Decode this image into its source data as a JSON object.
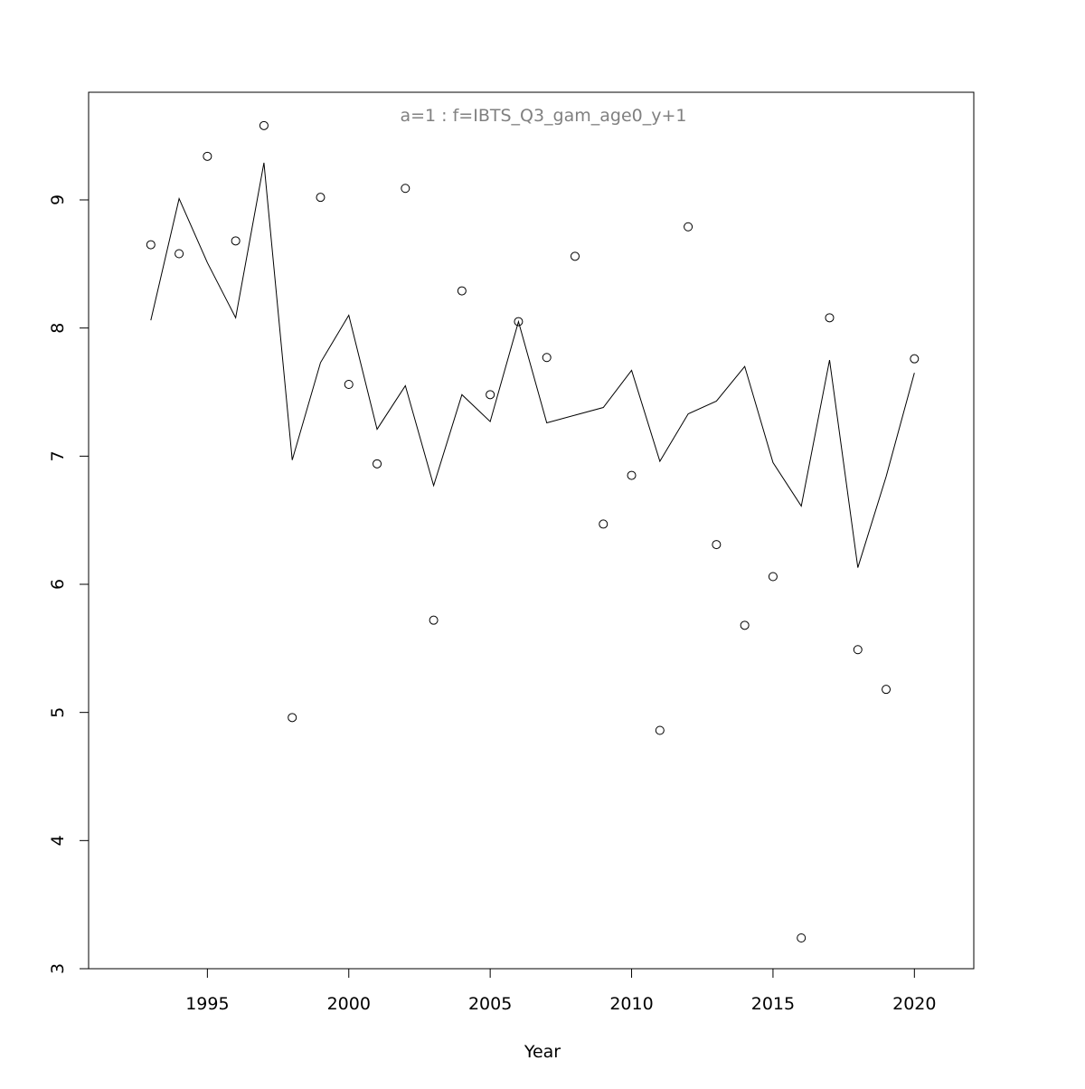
{
  "chart_data": {
    "type": "scatter-line",
    "title": "a=1  :  f=IBTS_Q3_gam_age0_y+1",
    "x_label": "Year",
    "x": [
      1993,
      1994,
      1995,
      1996,
      1997,
      1998,
      1999,
      2000,
      2001,
      2002,
      2003,
      2004,
      2005,
      2006,
      2007,
      2008,
      2009,
      2010,
      2011,
      2012,
      2013,
      2014,
      2015,
      2016,
      2017,
      2018,
      2019,
      2020
    ],
    "series": [
      {
        "style": "points",
        "color": "#000000",
        "values": [
          8.65,
          8.58,
          9.34,
          8.68,
          9.58,
          4.96,
          9.02,
          7.56,
          6.94,
          9.09,
          5.72,
          8.29,
          7.48,
          8.05,
          7.77,
          8.56,
          6.47,
          6.85,
          4.86,
          8.79,
          6.31,
          5.68,
          6.06,
          3.24,
          8.08,
          5.49,
          5.18,
          7.76
        ]
      },
      {
        "style": "line",
        "color": "#000000",
        "values": [
          8.06,
          9.01,
          8.51,
          8.08,
          9.29,
          6.97,
          7.73,
          8.1,
          7.21,
          7.55,
          6.77,
          7.48,
          7.27,
          8.05,
          7.26,
          7.32,
          7.38,
          7.67,
          6.96,
          7.33,
          7.43,
          7.7,
          6.95,
          6.61,
          7.75,
          6.13,
          6.84,
          7.65
        ]
      }
    ],
    "xlim": [
      1990.8,
      2022.1
    ],
    "xticks": [
      1995,
      2000,
      2005,
      2010,
      2015,
      2020
    ],
    "ylim": [
      3,
      9.84
    ],
    "yticks": [
      3,
      4,
      5,
      6,
      7,
      8,
      9
    ]
  }
}
